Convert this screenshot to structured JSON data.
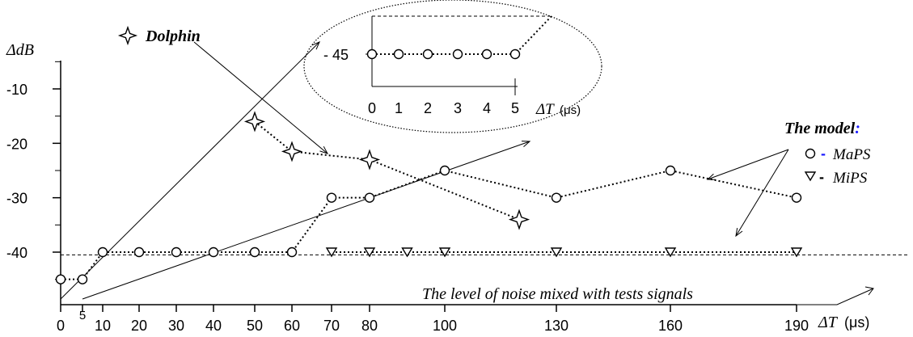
{
  "chart_data": {
    "type": "line",
    "title": "",
    "xlabel": "ΔT",
    "xunit": "(μs)",
    "ylabel": "ΔdB",
    "xticks": [
      0,
      5,
      10,
      20,
      30,
      40,
      50,
      60,
      70,
      80,
      100,
      130,
      160,
      190
    ],
    "yticks": [
      -10,
      -20,
      -30,
      -40
    ],
    "ylim": [
      -46,
      0
    ],
    "series": [
      {
        "name": "MaPS",
        "marker": "circle",
        "points": [
          [
            0,
            -45
          ],
          [
            5,
            -45
          ],
          [
            10,
            -40
          ],
          [
            20,
            -40
          ],
          [
            30,
            -40
          ],
          [
            40,
            -40
          ],
          [
            50,
            -40
          ],
          [
            60,
            -40
          ],
          [
            70,
            -30
          ],
          [
            80,
            -30
          ],
          [
            100,
            -25
          ],
          [
            130,
            -30
          ],
          [
            160,
            -25
          ],
          [
            190,
            -30
          ]
        ]
      },
      {
        "name": "MiPS",
        "marker": "triangle",
        "points": [
          [
            70,
            -40
          ],
          [
            80,
            -40
          ],
          [
            90,
            -40
          ],
          [
            100,
            -40
          ],
          [
            130,
            -40
          ],
          [
            160,
            -40
          ],
          [
            190,
            -40
          ]
        ]
      },
      {
        "name": "Dolphin",
        "marker": "star",
        "points": [
          [
            50,
            -16
          ],
          [
            60,
            -21.5
          ],
          [
            80,
            -23
          ],
          [
            120,
            -34
          ]
        ]
      }
    ],
    "noise_level": -40.5,
    "inset": {
      "ylabel_value": "- 45",
      "xticks": [
        0,
        1,
        2,
        3,
        4,
        5
      ],
      "xlabel": "ΔT",
      "xunit": "(μs)",
      "points": [
        [
          0,
          -45
        ],
        [
          1,
          -45
        ],
        [
          2,
          -45
        ],
        [
          3,
          -45
        ],
        [
          4,
          -45
        ],
        [
          5,
          -45
        ]
      ]
    },
    "annotations": {
      "dolphin_label": "Dolphin",
      "model_title": "The model",
      "model_colon": ":",
      "maps_prefix": "-",
      "maps_label": "MaPS",
      "mips_prefix": "-",
      "mips_label": "MiPS",
      "noise_text": "The level of noise mixed with tests signals"
    },
    "colors": {
      "accent_blue": "#1a1aff",
      "ink": "#000000"
    }
  }
}
